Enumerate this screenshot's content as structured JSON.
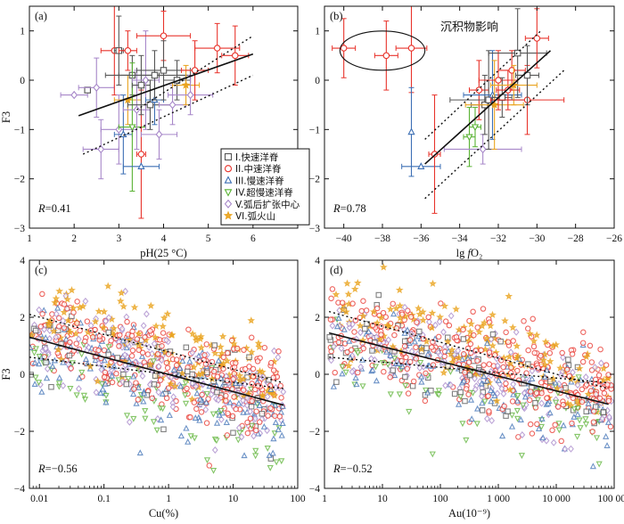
{
  "legend_items": [
    {
      "label": "I.快速洋脊",
      "shape": "square",
      "color": "#555555"
    },
    {
      "label": "II.中速洋脊",
      "shape": "circle",
      "color": "#e8332b"
    },
    {
      "label": "III.慢速洋脊",
      "shape": "triangle",
      "color": "#3c6fb4"
    },
    {
      "label": "IV.超慢速洋脊",
      "shape": "inverted-triangle",
      "color": "#59b233"
    },
    {
      "label": "V.弧后扩张中心",
      "shape": "diamond",
      "color": "#a787c9"
    },
    {
      "label": "VI.弧火山",
      "shape": "star",
      "color": "#e9a31e"
    }
  ],
  "chart_data": [
    {
      "panel": "(a)",
      "type": "scatter",
      "xlabel": "pH(25 °C)",
      "ylabel": "F3",
      "xlim": [
        1,
        7
      ],
      "ylim": [
        -3,
        1.5
      ],
      "xticks": [
        "1",
        "2",
        "3",
        "4",
        "5",
        "6"
      ],
      "yticks": [
        "−3",
        "−2",
        "−1",
        "0",
        "1"
      ],
      "r_label": "R=0.41",
      "fit_line": [
        [
          2.1,
          -0.72
        ],
        [
          6.0,
          0.53
        ]
      ],
      "confidence_upper": [
        [
          3.4,
          -0.6
        ],
        [
          6.0,
          0.9
        ]
      ],
      "confidence_lower": [
        [
          2.2,
          -1.5
        ],
        [
          6.0,
          0.1
        ]
      ],
      "points": [
        {
          "x": 2.0,
          "y": -0.3,
          "g": 4,
          "xerr": 0.3,
          "yerr": 0.0
        },
        {
          "x": 2.3,
          "y": -0.2,
          "g": 0,
          "xerr": 0.0,
          "yerr": 0.0
        },
        {
          "x": 2.5,
          "y": -0.15,
          "g": 4,
          "xerr": 0.4,
          "yerr": 0.6
        },
        {
          "x": 2.6,
          "y": -1.4,
          "g": 4,
          "xerr": 0.4,
          "yerr": 0.6
        },
        {
          "x": 2.9,
          "y": 0.6,
          "g": 1,
          "xerr": 0.3,
          "yerr": 0.9
        },
        {
          "x": 3.0,
          "y": 0.6,
          "g": 0,
          "xerr": 0.1,
          "yerr": 0.7
        },
        {
          "x": 3.0,
          "y": -1.0,
          "g": 4,
          "xerr": 0.4,
          "yerr": 0.7
        },
        {
          "x": 3.1,
          "y": -1.1,
          "g": 2,
          "xerr": 0.2,
          "yerr": 0.8
        },
        {
          "x": 3.2,
          "y": -0.4,
          "g": 5,
          "xerr": 0.3,
          "yerr": 0.5
        },
        {
          "x": 3.2,
          "y": 0.6,
          "g": 1,
          "xerr": 0.2,
          "yerr": 0.4
        },
        {
          "x": 3.3,
          "y": 0.1,
          "g": 0,
          "xerr": 0.6,
          "yerr": 0.4
        },
        {
          "x": 3.3,
          "y": -0.95,
          "g": 3,
          "xerr": 0.3,
          "yerr": 1.3
        },
        {
          "x": 3.4,
          "y": -0.6,
          "g": 4,
          "xerr": 0.3,
          "yerr": 0.8
        },
        {
          "x": 3.5,
          "y": -1.5,
          "g": 1,
          "xerr": 0.1,
          "yerr": 1.3
        },
        {
          "x": 3.5,
          "y": -0.1,
          "g": 0,
          "xerr": 0.2,
          "yerr": 0.6
        },
        {
          "x": 3.5,
          "y": -1.75,
          "g": 2,
          "xerr": 0.4,
          "yerr": 0.0
        },
        {
          "x": 3.6,
          "y": 0.0,
          "g": 4,
          "xerr": 0.3,
          "yerr": 1.0
        },
        {
          "x": 3.7,
          "y": -0.5,
          "g": 0,
          "xerr": 0.5,
          "yerr": 0.5
        },
        {
          "x": 3.8,
          "y": -0.4,
          "g": 2,
          "xerr": 0.2,
          "yerr": 0.5
        },
        {
          "x": 3.8,
          "y": 0.1,
          "g": 0,
          "xerr": 0.8,
          "yerr": 0.5
        },
        {
          "x": 3.9,
          "y": -1.1,
          "g": 4,
          "xerr": 0.4,
          "yerr": 0.5
        },
        {
          "x": 4.0,
          "y": 0.9,
          "g": 1,
          "xerr": 0.6,
          "yerr": 0.5
        },
        {
          "x": 4.0,
          "y": 0.2,
          "g": 0,
          "xerr": 0.6,
          "yerr": 0.6
        },
        {
          "x": 4.2,
          "y": -0.5,
          "g": 4,
          "xerr": 0.3,
          "yerr": 0.4
        },
        {
          "x": 4.3,
          "y": 0.0,
          "g": 0,
          "xerr": 0.3,
          "yerr": 0.4
        },
        {
          "x": 4.5,
          "y": -0.1,
          "g": 5,
          "xerr": 0.3,
          "yerr": 0.4
        },
        {
          "x": 4.6,
          "y": -0.3,
          "g": 4,
          "xerr": 0.5,
          "yerr": 0.4
        },
        {
          "x": 4.7,
          "y": 0.2,
          "g": 1,
          "xerr": 0.3,
          "yerr": 0.6
        },
        {
          "x": 5.2,
          "y": 0.65,
          "g": 1,
          "xerr": 0.5,
          "yerr": 0.5
        },
        {
          "x": 5.6,
          "y": 0.5,
          "g": 1,
          "xerr": 0.3,
          "yerr": 0.6
        }
      ]
    },
    {
      "panel": "(b)",
      "type": "scatter",
      "xlabel": "lg fO₂",
      "ylabel": "",
      "xlim": [
        -41,
        -26
      ],
      "ylim": [
        -3,
        1.5
      ],
      "xticks": [
        "−40",
        "−38",
        "−36",
        "−34",
        "−32",
        "−30",
        "−28",
        "−26"
      ],
      "yticks": [
        "−3",
        "−2",
        "−1",
        "0",
        "1"
      ],
      "r_label": "R=0.78",
      "annotation": "沉积物影响",
      "ellipse_center": [
        -38.0,
        0.6
      ],
      "fit_line": [
        [
          -35.8,
          -1.7
        ],
        [
          -29.3,
          0.6
        ]
      ],
      "confidence_upper": [
        [
          -35.8,
          -1.2
        ],
        [
          -29.8,
          1.0
        ]
      ],
      "confidence_lower": [
        [
          -35.8,
          -2.4
        ],
        [
          -28.6,
          0.2
        ]
      ],
      "points": [
        {
          "x": -40.0,
          "y": 0.65,
          "g": 1,
          "xerr": 0.6,
          "yerr": 0.6
        },
        {
          "x": -37.8,
          "y": 0.5,
          "g": 1,
          "xerr": 0.6,
          "yerr": 0.7
        },
        {
          "x": -36.5,
          "y": 0.65,
          "g": 1,
          "xerr": 0.8,
          "yerr": 0.9
        },
        {
          "x": -36.5,
          "y": -1.05,
          "g": 2,
          "xerr": 0.0,
          "yerr": 0.9
        },
        {
          "x": -36.0,
          "y": -1.75,
          "g": 2,
          "xerr": 1.0,
          "yerr": 0.0
        },
        {
          "x": -35.3,
          "y": -1.5,
          "g": 1,
          "xerr": 0.3,
          "yerr": 1.2
        },
        {
          "x": -33.5,
          "y": -1.15,
          "g": 3,
          "xerr": 0.3,
          "yerr": 0.6
        },
        {
          "x": -33.2,
          "y": -0.95,
          "g": 3,
          "xerr": 0.3,
          "yerr": 0.4
        },
        {
          "x": -33.0,
          "y": -0.2,
          "g": 1,
          "xerr": 0.5,
          "yerr": 0.6
        },
        {
          "x": -32.8,
          "y": -1.4,
          "g": 4,
          "xerr": 2.0,
          "yerr": 0.3
        },
        {
          "x": -32.7,
          "y": -0.5,
          "g": 0,
          "xerr": 0.7,
          "yerr": 0.6
        },
        {
          "x": -32.5,
          "y": -0.4,
          "g": 0,
          "xerr": 2.0,
          "yerr": 1.0
        },
        {
          "x": -32.3,
          "y": -0.3,
          "g": 2,
          "xerr": 1.5,
          "yerr": 0.9
        },
        {
          "x": -32.2,
          "y": -0.5,
          "g": 5,
          "xerr": 1.5,
          "yerr": 0.9
        },
        {
          "x": -32.0,
          "y": 0.0,
          "g": 1,
          "xerr": 1.0,
          "yerr": 0.6
        },
        {
          "x": -31.8,
          "y": -0.35,
          "g": 0,
          "xerr": 0.5,
          "yerr": 0.4
        },
        {
          "x": -31.5,
          "y": -0.2,
          "g": 1,
          "xerr": 0.6,
          "yerr": 0.4
        },
        {
          "x": -31.3,
          "y": 0.2,
          "g": 1,
          "xerr": 0.7,
          "yerr": 0.4
        },
        {
          "x": -31.0,
          "y": 0.55,
          "g": 0,
          "xerr": 1.5,
          "yerr": 0.9
        },
        {
          "x": -31.2,
          "y": -0.1,
          "g": 5,
          "xerr": 1.2,
          "yerr": 0.4
        },
        {
          "x": -30.5,
          "y": -0.4,
          "g": 1,
          "xerr": 1.9,
          "yerr": 0.7
        },
        {
          "x": -30.5,
          "y": 0.1,
          "g": 0,
          "xerr": 0.6,
          "yerr": 0.6
        },
        {
          "x": -30.0,
          "y": 0.85,
          "g": 1,
          "xerr": 0.6,
          "yerr": 0.6
        }
      ]
    },
    {
      "panel": "(c)",
      "type": "scatter",
      "xscale": "log",
      "xlabel": "Cu(%)",
      "ylabel": "F3",
      "xlim": [
        0.007,
        100
      ],
      "ylim": [
        -4,
        4
      ],
      "xticks": [
        "0.01",
        "0.1",
        "1",
        "10",
        "100"
      ],
      "yticks": [
        "−4",
        "−2",
        "0",
        "2",
        "4"
      ],
      "r_label": "R=−0.56",
      "fit_line": [
        [
          0.007,
          1.3
        ],
        [
          60,
          -1.08
        ]
      ],
      "confidence_upper": [
        [
          0.007,
          2.1
        ],
        [
          60,
          -0.3
        ]
      ],
      "confidence_lower": [
        [
          0.007,
          0.6
        ],
        [
          60,
          -0.5
        ]
      ],
      "cloud": {
        "n": 900,
        "x_range": [
          0.007,
          60
        ],
        "intercept_at_0.01": 1.2,
        "slope_per_decade": -0.61,
        "spread": 1.1
      }
    },
    {
      "panel": "(d)",
      "type": "scatter",
      "xscale": "log",
      "xlabel": "Au(10⁻⁹)",
      "ylabel": "",
      "xlim": [
        1,
        100000
      ],
      "ylim": [
        -4,
        4
      ],
      "xticks": [
        "1",
        "10",
        "100",
        "1 000",
        "10 000",
        "100 000"
      ],
      "yticks": [
        "−4",
        "−2",
        "0",
        "2",
        "4"
      ],
      "r_label": "R=−0.52",
      "fit_line": [
        [
          1.2,
          1.45
        ],
        [
          80000,
          -1.05
        ]
      ],
      "confidence_upper": [
        [
          1.2,
          2.2
        ],
        [
          80000,
          -0.5
        ]
      ],
      "confidence_lower": [
        [
          1.2,
          0.6
        ],
        [
          80000,
          -0.3
        ]
      ],
      "cloud": {
        "n": 900,
        "x_range": [
          1.2,
          90000
        ],
        "intercept_at_1": 1.5,
        "slope_per_decade": -0.52,
        "spread": 1.1
      }
    }
  ]
}
